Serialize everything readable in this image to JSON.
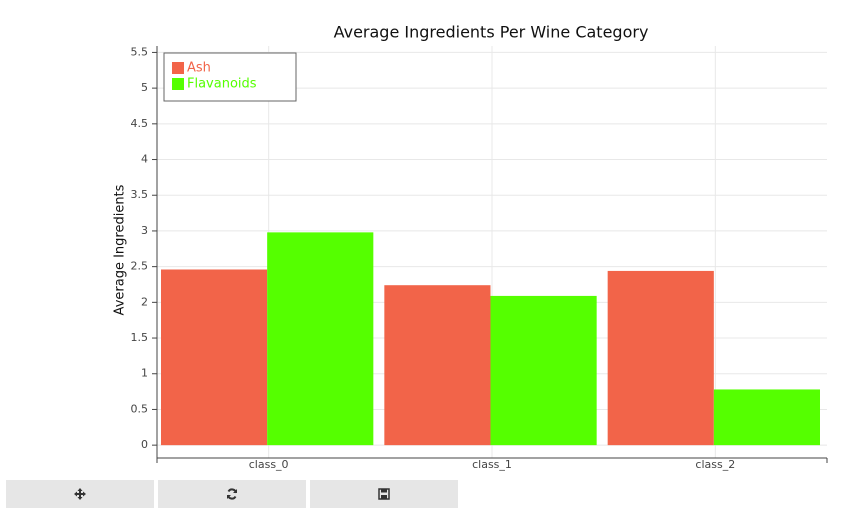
{
  "chart_data": {
    "type": "bar",
    "title": "Average Ingredients Per Wine Category",
    "y_label": "Average Ingredients",
    "categories": [
      "class_0",
      "class_1",
      "class_2"
    ],
    "series": [
      {
        "name": "Ash",
        "color": "#f26449",
        "values": [
          2.46,
          2.24,
          2.44
        ]
      },
      {
        "name": "Flavanoids",
        "color": "#55ff00",
        "values": [
          2.98,
          2.09,
          0.78
        ]
      }
    ],
    "ylim": [
      -0.18,
      5.59
    ],
    "yticks": [
      0,
      0.5,
      1,
      1.5,
      2,
      2.5,
      3,
      3.5,
      4,
      4.5,
      5,
      5.5
    ],
    "grid": true,
    "legend_position": "top-left"
  }
}
